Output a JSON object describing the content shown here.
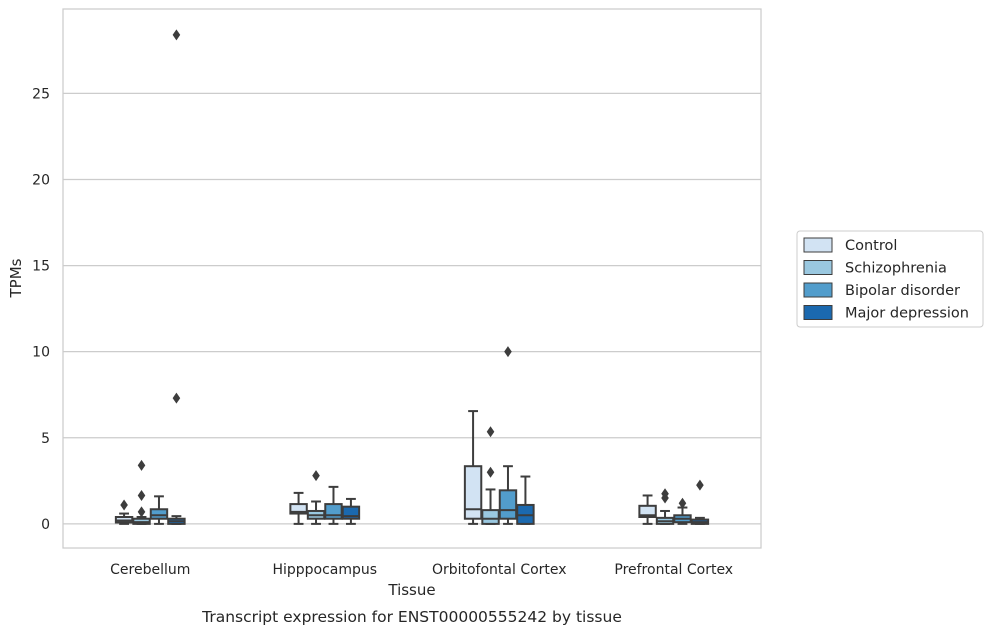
{
  "chart_data": {
    "type": "box",
    "caption": "Transcript expression for ENST00000555242 by tissue",
    "xlabel": "Tissue",
    "ylabel": "TPMs",
    "ylim": [
      -1.4,
      29.9
    ],
    "yticks": [
      0,
      5,
      10,
      15,
      20,
      25
    ],
    "grid": "horizontal",
    "legend_position": "right",
    "categories": [
      "Cerebellum",
      "Hipppocampus",
      "Orbitofontal Cortex",
      "Prefrontal Cortex"
    ],
    "series": [
      {
        "name": "Control",
        "color": "#d2e3f3",
        "boxes": [
          {
            "whisker_low": 0.0,
            "q1": 0.08,
            "median": 0.2,
            "q3": 0.4,
            "whisker_high": 0.6,
            "outliers": [
              1.1
            ]
          },
          {
            "whisker_low": 0.0,
            "q1": 0.6,
            "median": 0.7,
            "q3": 1.15,
            "whisker_high": 1.8,
            "outliers": []
          },
          {
            "whisker_low": 0.0,
            "q1": 0.3,
            "median": 0.85,
            "q3": 3.35,
            "whisker_high": 6.55,
            "outliers": []
          },
          {
            "whisker_low": 0.0,
            "q1": 0.4,
            "median": 0.5,
            "q3": 1.05,
            "whisker_high": 1.65,
            "outliers": []
          }
        ]
      },
      {
        "name": "Schizophrenia",
        "color": "#9ac8e0",
        "boxes": [
          {
            "whisker_low": 0.0,
            "q1": 0.0,
            "median": 0.1,
            "q3": 0.3,
            "whisker_high": 0.4,
            "outliers": [
              0.7,
              1.65,
              3.4
            ]
          },
          {
            "whisker_low": 0.0,
            "q1": 0.3,
            "median": 0.5,
            "q3": 0.75,
            "whisker_high": 1.3,
            "outliers": [
              2.8
            ]
          },
          {
            "whisker_low": 0.0,
            "q1": 0.0,
            "median": 0.3,
            "q3": 0.8,
            "whisker_high": 2.0,
            "outliers": [
              3.0,
              5.35
            ]
          },
          {
            "whisker_low": 0.0,
            "q1": 0.0,
            "median": 0.15,
            "q3": 0.35,
            "whisker_high": 0.75,
            "outliers": [
              1.5,
              1.75
            ]
          }
        ]
      },
      {
        "name": "Bipolar disorder",
        "color": "#529dcc",
        "boxes": [
          {
            "whisker_low": 0.0,
            "q1": 0.3,
            "median": 0.5,
            "q3": 0.85,
            "whisker_high": 1.6,
            "outliers": []
          },
          {
            "whisker_low": 0.0,
            "q1": 0.3,
            "median": 0.5,
            "q3": 1.15,
            "whisker_high": 2.15,
            "outliers": []
          },
          {
            "whisker_low": 0.0,
            "q1": 0.3,
            "median": 0.8,
            "q3": 1.95,
            "whisker_high": 3.35,
            "outliers": [
              10.0
            ]
          },
          {
            "whisker_low": 0.0,
            "q1": 0.1,
            "median": 0.3,
            "q3": 0.5,
            "whisker_high": 0.95,
            "outliers": [
              1.2
            ]
          }
        ]
      },
      {
        "name": "Major depression",
        "color": "#1b69af",
        "boxes": [
          {
            "whisker_low": 0.0,
            "q1": 0.0,
            "median": 0.15,
            "q3": 0.3,
            "whisker_high": 0.45,
            "outliers": [
              7.3,
              28.4
            ]
          },
          {
            "whisker_low": 0.0,
            "q1": 0.3,
            "median": 0.45,
            "q3": 1.0,
            "whisker_high": 1.45,
            "outliers": []
          },
          {
            "whisker_low": 0.0,
            "q1": 0.0,
            "median": 0.5,
            "q3": 1.1,
            "whisker_high": 2.75,
            "outliers": []
          },
          {
            "whisker_low": 0.0,
            "q1": 0.0,
            "median": 0.1,
            "q3": 0.25,
            "whisker_high": 0.35,
            "outliers": [
              2.25
            ]
          }
        ]
      }
    ]
  }
}
